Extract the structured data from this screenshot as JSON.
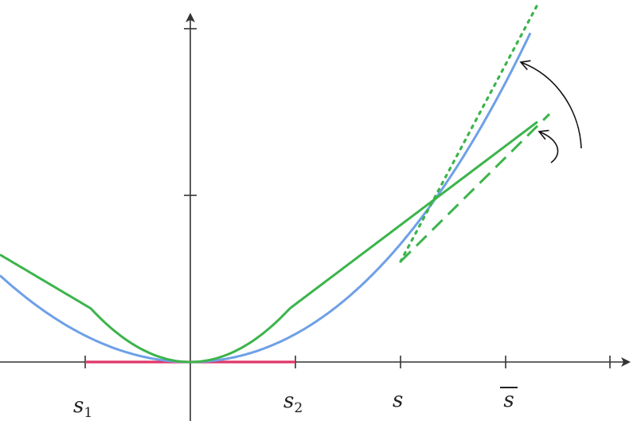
{
  "labels": {
    "s1_main": "s",
    "s1_sub": "1",
    "s2_main": "s",
    "s2_sub": "2",
    "s": "s",
    "s_bar": "s"
  },
  "colors": {
    "axis": "#333333",
    "function_curve": "#6ea0e6",
    "tangent_lines": "#3cb44b",
    "interval": "#e0366a",
    "arrows": "#111111"
  }
}
